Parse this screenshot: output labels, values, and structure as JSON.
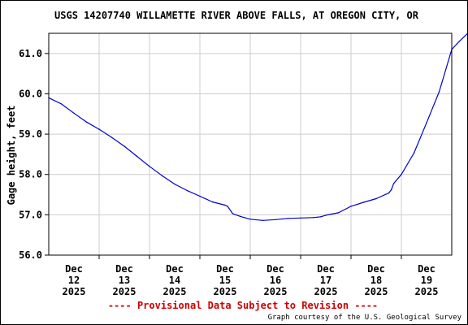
{
  "chart_data": {
    "type": "line",
    "title": "USGS 14207740 WILLAMETTE RIVER ABOVE FALLS, AT OREGON CITY, OR",
    "xlabel": "",
    "ylabel": "Gage height, feet",
    "x_ticks": [
      {
        "line1": "Dec",
        "line2": "12",
        "line3": "2025",
        "x": 0.5
      },
      {
        "line1": "Dec",
        "line2": "13",
        "line3": "2025",
        "x": 1.5
      },
      {
        "line1": "Dec",
        "line2": "14",
        "line3": "2025",
        "x": 2.5
      },
      {
        "line1": "Dec",
        "line2": "15",
        "line3": "2025",
        "x": 3.5
      },
      {
        "line1": "Dec",
        "line2": "16",
        "line3": "2025",
        "x": 4.5
      },
      {
        "line1": "Dec",
        "line2": "17",
        "line3": "2025",
        "x": 5.5
      },
      {
        "line1": "Dec",
        "line2": "18",
        "line3": "2025",
        "x": 6.5
      },
      {
        "line1": "Dec",
        "line2": "19",
        "line3": "2025",
        "x": 7.5
      }
    ],
    "x_gridlines": [
      1,
      2,
      3,
      4,
      5,
      6,
      7
    ],
    "xlim": [
      0,
      8
    ],
    "y_ticks": [
      "56.0",
      "57.0",
      "58.0",
      "59.0",
      "60.0",
      "61.0"
    ],
    "ylim": [
      56.0,
      61.5
    ],
    "grid": true,
    "series": [
      {
        "color": "#0000cc",
        "points": [
          [
            0.0,
            59.9
          ],
          [
            0.25,
            59.75
          ],
          [
            0.5,
            59.52
          ],
          [
            0.75,
            59.3
          ],
          [
            1.0,
            59.12
          ],
          [
            1.25,
            58.92
          ],
          [
            1.5,
            58.7
          ],
          [
            1.75,
            58.45
          ],
          [
            2.0,
            58.2
          ],
          [
            2.25,
            57.97
          ],
          [
            2.5,
            57.76
          ],
          [
            2.75,
            57.6
          ],
          [
            3.0,
            57.46
          ],
          [
            3.25,
            57.32
          ],
          [
            3.5,
            57.24
          ],
          [
            3.55,
            57.21
          ],
          [
            3.65,
            57.03
          ],
          [
            3.8,
            56.96
          ],
          [
            4.0,
            56.89
          ],
          [
            4.25,
            56.86
          ],
          [
            4.5,
            56.88
          ],
          [
            4.75,
            56.91
          ],
          [
            5.0,
            56.92
          ],
          [
            5.25,
            56.93
          ],
          [
            5.4,
            56.95
          ],
          [
            5.5,
            56.99
          ],
          [
            5.75,
            57.05
          ],
          [
            6.0,
            57.21
          ],
          [
            6.25,
            57.31
          ],
          [
            6.5,
            57.4
          ],
          [
            6.75,
            57.54
          ],
          [
            6.8,
            57.62
          ],
          [
            6.85,
            57.78
          ],
          [
            7.0,
            58.0
          ],
          [
            7.25,
            58.53
          ],
          [
            7.5,
            59.28
          ],
          [
            7.75,
            60.05
          ],
          [
            8.0,
            61.1
          ],
          [
            8.15,
            61.3
          ],
          [
            8.3,
            61.48
          ]
        ]
      }
    ],
    "provisional_note": "---- Provisional Data Subject to Revision ----",
    "credit": "Graph courtesy of the U.S. Geological Survey",
    "colors": {
      "line": "#0000cc",
      "grid": "#cccccc",
      "axis": "#000000",
      "note": "#cc0000"
    }
  }
}
